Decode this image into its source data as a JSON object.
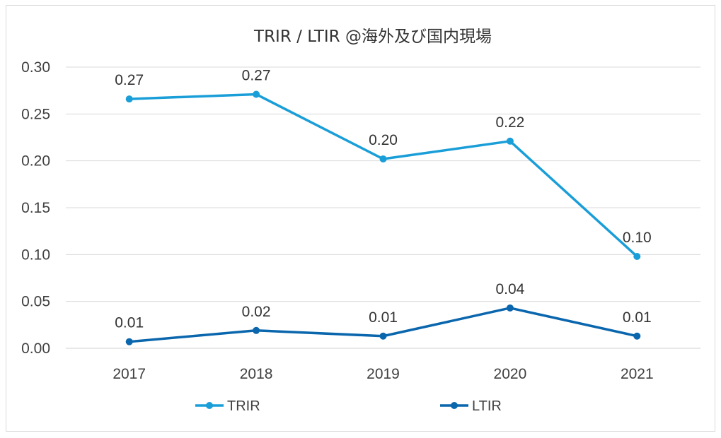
{
  "chart_data": {
    "type": "line",
    "title": "TRIR / LTIR @海外及び国内現場",
    "xlabel": "",
    "ylabel": "",
    "categories": [
      "2017",
      "2018",
      "2019",
      "2020",
      "2021"
    ],
    "ylim": [
      0,
      0.3
    ],
    "yticks": [
      "0.00",
      "0.05",
      "0.10",
      "0.15",
      "0.20",
      "0.25",
      "0.30"
    ],
    "grid": true,
    "legend_position": "bottom",
    "series": [
      {
        "name": "TRIR",
        "color": "#1a9ed8",
        "values": [
          0.266,
          0.271,
          0.202,
          0.221,
          0.098
        ],
        "labels": [
          "0.27",
          "0.27",
          "0.20",
          "0.22",
          "0.10"
        ]
      },
      {
        "name": "LTIR",
        "color": "#0a66ad",
        "values": [
          0.007,
          0.019,
          0.013,
          0.043,
          0.013
        ],
        "labels": [
          "0.01",
          "0.02",
          "0.01",
          "0.04",
          "0.01"
        ]
      }
    ]
  }
}
